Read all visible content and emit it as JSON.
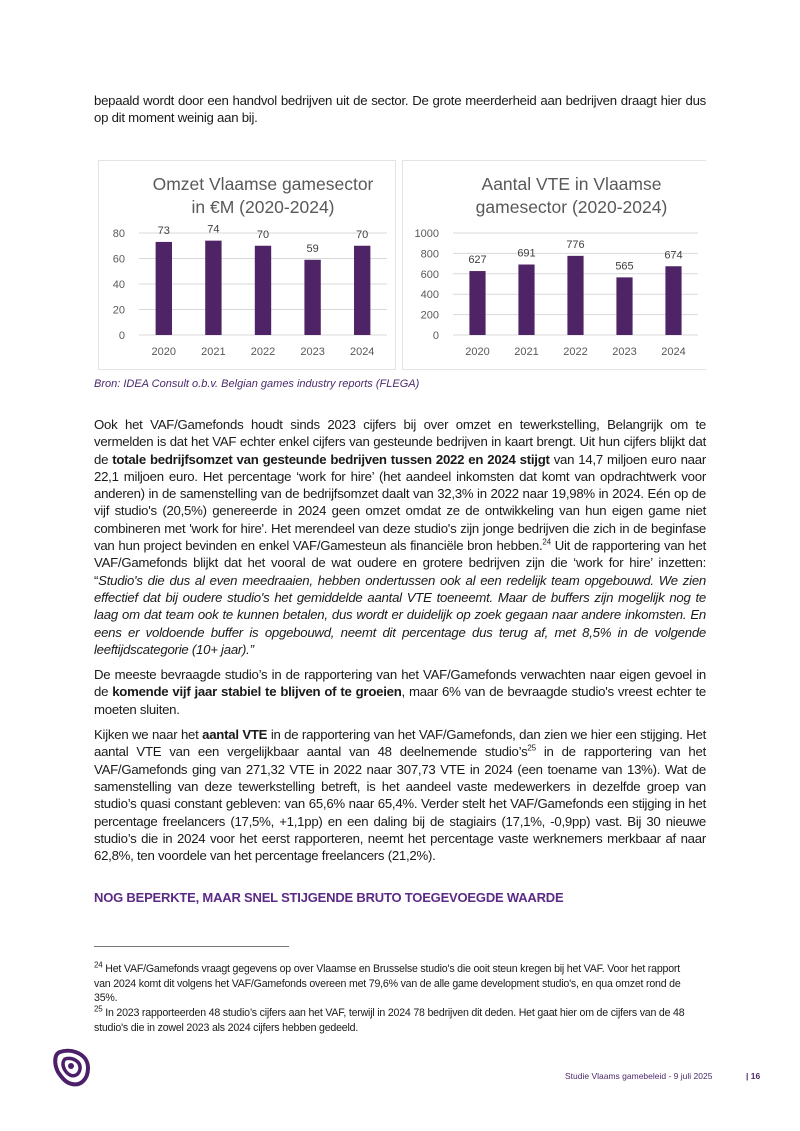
{
  "intro": "bepaald wordt door een handvol bedrijven uit de sector. De grote meerderheid aan bedrijven draagt hier dus op dit moment weinig aan bij.",
  "chart_data": [
    {
      "type": "bar",
      "title": "Omzet Vlaamse gamesector in €M (2020-2024)",
      "categories": [
        "2020",
        "2021",
        "2022",
        "2023",
        "2024"
      ],
      "values": [
        73,
        74,
        70,
        59,
        70
      ],
      "yticks": [
        "0",
        "20",
        "40",
        "60",
        "80"
      ],
      "ylim": [
        0,
        80
      ],
      "grid": true,
      "bar_color": "#4e2466"
    },
    {
      "type": "bar",
      "title": "Aantal VTE in Vlaamse gamesector (2020-2024)",
      "categories": [
        "2020",
        "2021",
        "2022",
        "2023",
        "2024"
      ],
      "values": [
        627,
        691,
        776,
        565,
        674
      ],
      "yticks": [
        "0",
        "200",
        "400",
        "600",
        "800",
        "1000"
      ],
      "ylim": [
        0,
        1000
      ],
      "grid": true,
      "bar_color": "#4e2466"
    }
  ],
  "caption": "Bron: IDEA Consult o.b.v. Belgian games industry reports (FLEGA)",
  "p1": {
    "a": "Ook het VAF/Gamefonds houdt sinds 2023 cijfers bij over omzet en tewerkstelling, Belangrijk om te vermelden is dat het VAF echter enkel cijfers van gesteunde bedrijven in kaart brengt. Uit hun cijfers blijkt dat de ",
    "bold": "totale bedrijfsomzet van gesteunde bedrijven tussen 2022 en 2024 stijgt",
    "b": " van 14,7 miljoen euro naar 22,1 miljoen euro. Het percentage ‘work for hire’ (het aandeel inkomsten dat komt van opdrachtwerk voor anderen) in de samenstelling van de bedrijfsomzet daalt van 32,3% in 2022 naar 19,98% in 2024. Eén op de vijf studio's (20,5%) genereerde in 2024 geen omzet omdat ze de ontwikkeling van hun eigen game niet combineren met 'work for hire'. Het merendeel van deze studio's zijn jonge bedrijven die zich in de beginfase van hun project bevinden en enkel VAF/Gamesteun als financiële bron hebben.",
    "sup": "24",
    "c": " Uit de rapportering van het VAF/Gamefonds blijkt dat het vooral de wat oudere en grotere bedrijven zijn die ‘work for hire’ inzetten: “",
    "italic": "Studio's die dus al even meedraaien, hebben ondertussen ook al een redelijk team opgebouwd. We zien effectief dat bij oudere studio's het gemiddelde aantal VTE toeneemt. Maar de buffers zijn mogelijk nog te laag om dat team ook te kunnen betalen, dus wordt er duidelijk op zoek gegaan naar andere inkomsten. En eens er voldoende buffer is opgebouwd, neemt dit percentage dus terug af, met 8,5% in de volgende leeftijdscategorie (10+ jaar).”"
  },
  "p2": {
    "a": "De meeste bevraagde studio’s in de rapportering van het VAF/Gamefonds verwachten naar eigen gevoel in de ",
    "bold": "komende vijf jaar stabiel te blijven of te groeien",
    "b": ", maar 6% van de bevraagde studio's vreest echter te moeten sluiten."
  },
  "p3": {
    "a": "Kijken we naar het ",
    "bold": "aantal VTE",
    "b": " in de rapportering van het VAF/Gamefonds, dan zien we hier een stijging. Het aantal VTE van een vergelijkbaar aantal van 48 deelnemende studio’s",
    "sup": "25",
    "c": " in de rapportering van het VAF/Gamefonds ging van 271,32 VTE in 2022 naar 307,73 VTE in 2024 (een toename van 13%). Wat de samenstelling van deze tewerkstelling betreft, is het aandeel vaste medewerkers in dezelfde groep van studio’s quasi constant gebleven: van 65,6% naar 65,4%. Verder stelt het VAF/Gamefonds een stijging in het percentage freelancers (17,5%, +1,1pp) en een daling bij de stagiairs (17,1%, -0,9pp) vast. Bij 30 nieuwe studio’s die in 2024 voor het eerst rapporteren, neemt het percentage vaste werknemers merkbaar af naar 62,8%, ten voordele van het percentage freelancers (21,2%)."
  },
  "heading": "NOG BEPERKTE, MAAR SNEL STIJGENDE BRUTO TOEGEVOEGDE WAARDE",
  "footnotes": [
    {
      "num": "24",
      "text": " Het VAF/Gamefonds vraagt gegevens op over Vlaamse en Brusselse studio's die ooit steun kregen bij het VAF. Voor het rapport van 2024 komt dit volgens het VAF/Gamefonds overeen met 79,6% van de alle game development studio's, en qua omzet rond de 35%."
    },
    {
      "num": "25",
      "text": " In 2023 rapporteerden 48 studio’s cijfers aan het VAF, terwijl in 2024 78 bedrijven dit deden. Het gaat hier om de cijfers van de 48 studio's die in zowel 2023 als 2024 cijfers hebben gedeeld."
    }
  ],
  "footer": {
    "title": "Studie Vlaams gamebeleid - 9 juli 2025",
    "page": "| 16"
  },
  "colors": {
    "accent": "#5b2a86",
    "bar": "#4e2466"
  }
}
